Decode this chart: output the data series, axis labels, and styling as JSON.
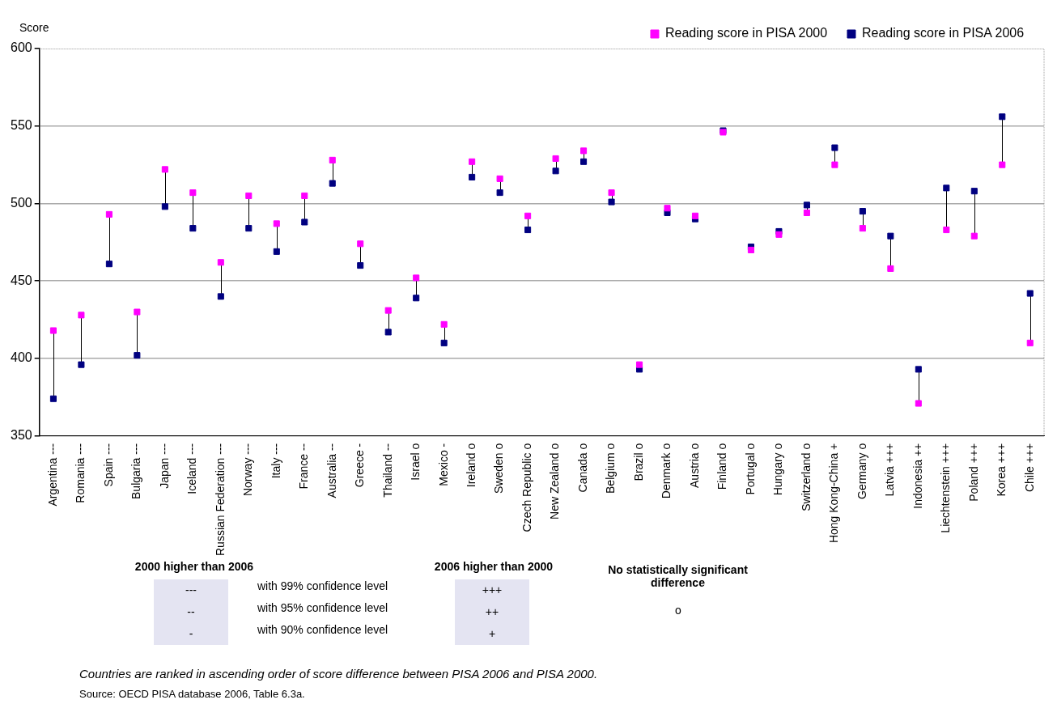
{
  "chart_data": {
    "type": "scatter",
    "ylabel": "Score",
    "categories": [
      "Argentina ---",
      "Romania ---",
      "Spain ---",
      "Bulgaria ---",
      "Japan ---",
      "Iceland ---",
      "Russian Federation ---",
      "Norway ---",
      "Italy ---",
      "France --",
      "Australia --",
      "Greece -",
      "Thailand --",
      "Israel o",
      "Mexico -",
      "Ireland o",
      "Sweden o",
      "Czech Republic o",
      "New Zealand o",
      "Canada o",
      "Belgium o",
      "Brazil o",
      "Denmark o",
      "Austria o",
      "Finland o",
      "Portugal o",
      "Hungary o",
      "Switzerland o",
      "Hong Kong-China +",
      "Germany o",
      "Latvia +++",
      "Indonesia ++",
      "Liechtenstein +++",
      "Poland +++",
      "Korea +++",
      "Chile +++"
    ],
    "series": [
      {
        "name": "Reading score in PISA 2000",
        "color": "#ff00ff",
        "values": [
          418,
          428,
          493,
          430,
          522,
          507,
          462,
          505,
          487,
          505,
          528,
          474,
          431,
          452,
          422,
          527,
          516,
          492,
          529,
          534,
          507,
          396,
          497,
          492,
          546,
          470,
          480,
          494,
          525,
          484,
          458,
          371,
          483,
          479,
          525,
          410
        ]
      },
      {
        "name": "Reading score in PISA 2006",
        "color": "#000080",
        "values": [
          374,
          396,
          461,
          402,
          498,
          484,
          440,
          484,
          469,
          488,
          513,
          460,
          417,
          439,
          410,
          517,
          507,
          483,
          521,
          527,
          501,
          393,
          494,
          490,
          547,
          472,
          482,
          499,
          536,
          495,
          479,
          393,
          510,
          508,
          556,
          442
        ]
      }
    ],
    "ylim": [
      350,
      600
    ],
    "yticks": [
      350,
      400,
      450,
      500,
      550,
      600
    ],
    "grid": "y",
    "legend": "top right",
    "marker": "square",
    "annotations": [
      "2000 higher than 2006",
      "---",
      "--",
      "-",
      "with 99% confidence level",
      "with 95% confidence level",
      "with 90% confidence level",
      "2006 higher than 2000",
      "+++",
      "++",
      "+",
      "No statistically significant difference",
      "o",
      "Countries are ranked in ascending order of score difference between PISA 2006 and PISA 2000.",
      "Source: OECD PISA database 2006, Table 6.3a."
    ]
  }
}
